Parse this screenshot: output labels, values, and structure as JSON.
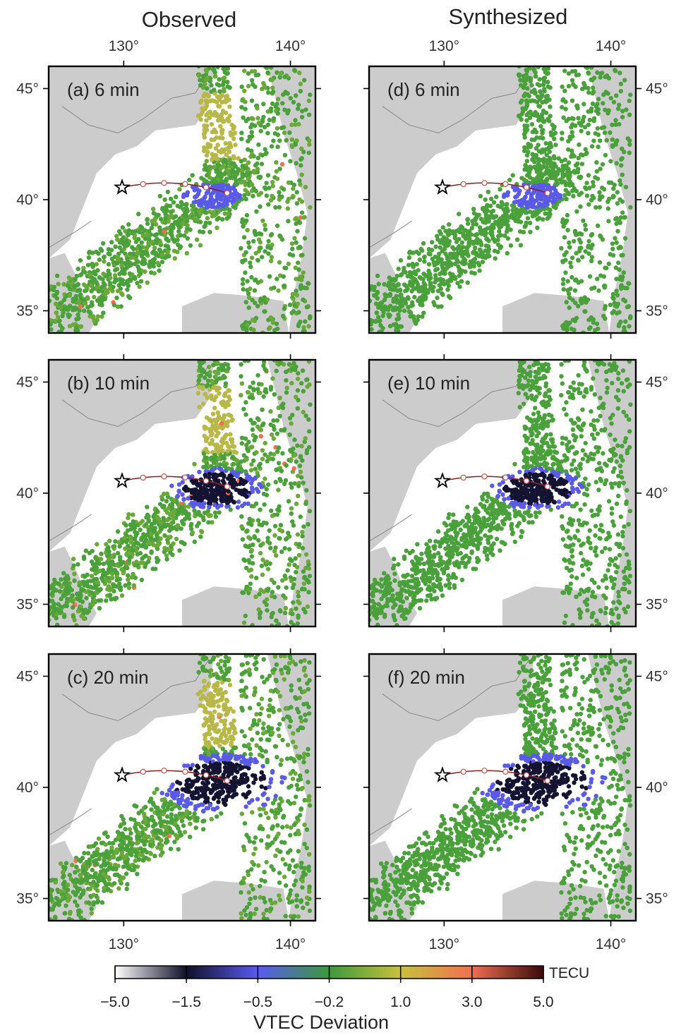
{
  "figure": {
    "columns": [
      {
        "title": "Observed"
      },
      {
        "title": "Synthesized"
      }
    ],
    "panels": [
      {
        "id": "a",
        "label": "(a) 6 min",
        "type": "observed",
        "time_min": 6,
        "anomaly_level": 0.2
      },
      {
        "id": "b",
        "label": "(b) 10 min",
        "type": "observed",
        "time_min": 10,
        "anomaly_level": 0.6
      },
      {
        "id": "c",
        "label": "(c) 20 min",
        "type": "observed",
        "time_min": 20,
        "anomaly_level": 1.0
      },
      {
        "id": "d",
        "label": "(d) 6 min",
        "type": "synthesized",
        "time_min": 6,
        "anomaly_level": 0.2
      },
      {
        "id": "e",
        "label": "(e) 10 min",
        "type": "synthesized",
        "time_min": 10,
        "anomaly_level": 0.6
      },
      {
        "id": "f",
        "label": "(f) 20 min",
        "type": "synthesized",
        "time_min": 20,
        "anomaly_level": 1.0
      }
    ],
    "axes": {
      "lon_range": [
        125.5,
        141.5
      ],
      "lat_range": [
        34.0,
        46.0
      ],
      "lon_ticks": [
        130,
        140
      ],
      "lat_ticks": [
        35,
        40,
        45
      ],
      "lon_tick_labels": [
        "130°",
        "140°"
      ],
      "lat_tick_labels": [
        "35°",
        "40°",
        "45°"
      ]
    },
    "epicenter": {
      "lon": 129.9,
      "lat": 40.55
    },
    "track": {
      "start_lon": 129.9,
      "start_lat": 40.55,
      "end_lon": 136.2,
      "end_lat": 40.3
    }
  },
  "colorbar": {
    "unit": "TECU",
    "title": "VTEC Deviation",
    "tick_labels": [
      "−5.0",
      "−1.5",
      "−0.5",
      "−0.2",
      "1.0",
      "3.0",
      "5.0"
    ],
    "colors": [
      "#ffffff",
      "#10102a",
      "#5a5af0",
      "#3a9a3a",
      "#c8c040",
      "#f07050",
      "#3a0a0a"
    ]
  },
  "colors": {
    "land": "#cccccc",
    "sea": "#ffffff",
    "green_station": "#4aa03a",
    "blue_anomaly": "#5a5ae8",
    "dark_anomaly": "#141432",
    "track": "#8a2020"
  }
}
